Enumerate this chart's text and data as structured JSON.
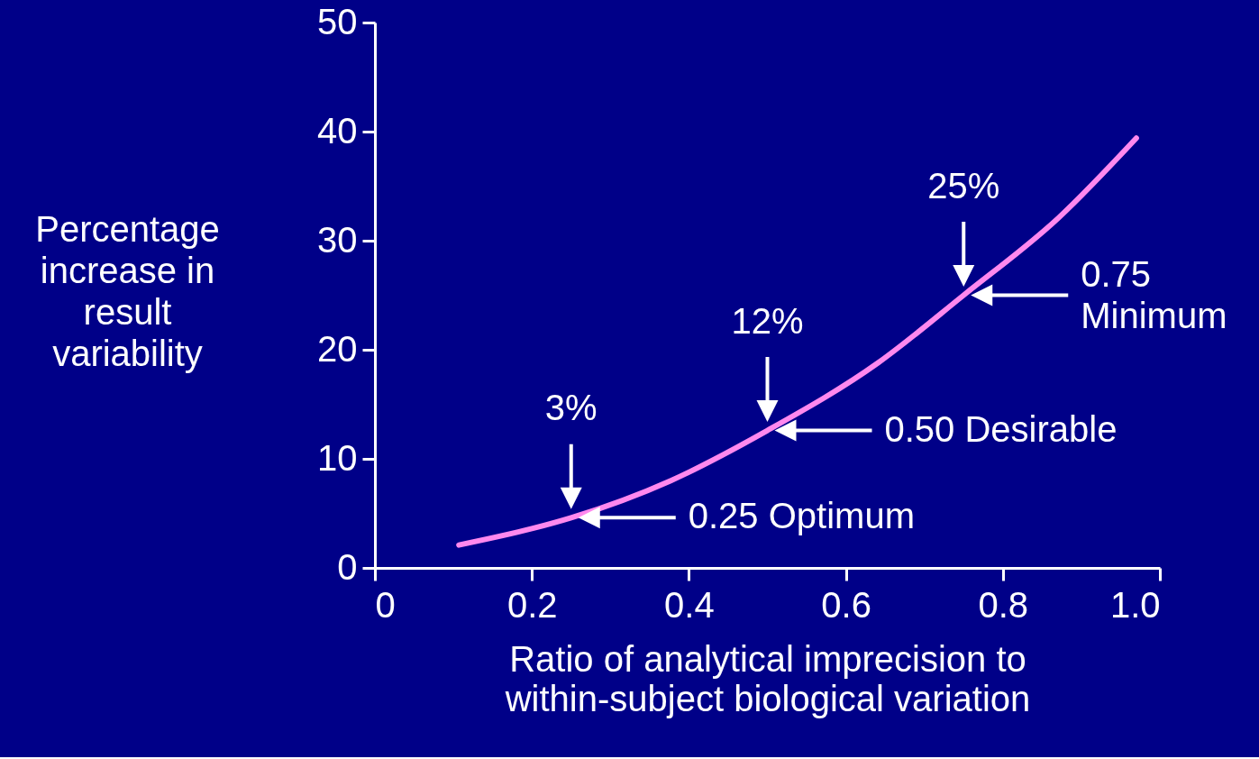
{
  "chart_data": {
    "type": "line",
    "xlabel": "Ratio of analytical imprecision to\nwithin-subject biological variation",
    "ylabel": "Percentage\nincrease in\nresult\nvariability",
    "x": [
      0.107,
      0.2,
      0.25,
      0.377,
      0.5,
      0.641,
      0.75,
      0.871,
      0.97
    ],
    "series": [
      {
        "color": "#ff88ee",
        "values": [
          2.1,
          3.6,
          4.6,
          8.0,
          12.6,
          18.8,
          25.0,
          32.1,
          39.4
        ]
      }
    ],
    "xlim": [
      0,
      1.0
    ],
    "xticks": [
      0,
      0.2,
      0.4,
      0.6,
      0.8,
      {
        "value": 1.0,
        "label": "1.0"
      }
    ],
    "ylim": [
      0,
      50
    ],
    "yticks": [
      0,
      10,
      20,
      30,
      40,
      50
    ],
    "grid": false,
    "marker": "none",
    "line_style": "solid",
    "annotations": [
      {
        "text": "3%",
        "x": 0.25,
        "y": 4.6
      },
      "0.25  Optimum",
      {
        "text": "12%",
        "x": 0.5,
        "y": 12.6
      },
      "0.50  Desirable",
      {
        "text": "25%",
        "x": 0.75,
        "y": 25.0
      },
      "0.75\nMinimum"
    ]
  }
}
